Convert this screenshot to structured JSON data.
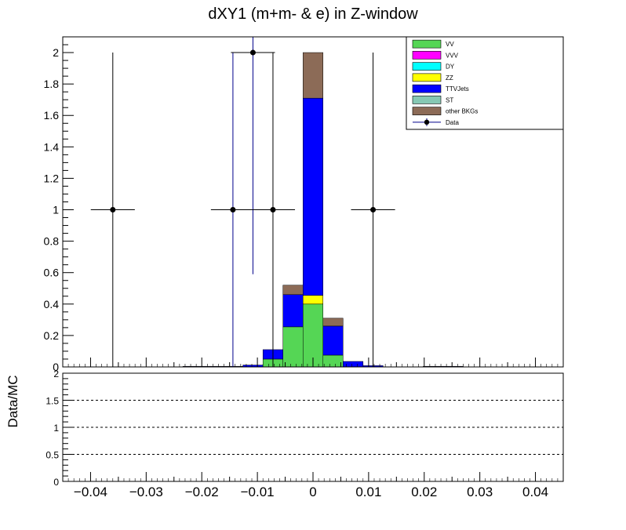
{
  "chart_data": [
    {
      "type": "bar",
      "stacked": true,
      "title": "dXY1 (m+m- & e) in Z-window",
      "xlabel": "",
      "ylabel": "",
      "xlim": [
        -0.045,
        0.045
      ],
      "ylim": [
        0,
        2.1
      ],
      "bin_width": 0.0036,
      "x_tick_labels": [
        "−0.04",
        "−0.03",
        "−0.02",
        "−0.01",
        "0",
        "0.01",
        "0.02",
        "0.03",
        "0.04"
      ],
      "x_ticks": [
        -0.04,
        -0.03,
        -0.02,
        -0.01,
        0,
        0.01,
        0.02,
        0.03,
        0.04
      ],
      "y_tick_labels": [
        "0",
        "0.2",
        "0.4",
        "0.6",
        "0.8",
        "1",
        "1.2",
        "1.4",
        "1.6",
        "1.8",
        "2"
      ],
      "y_ticks": [
        0,
        0.2,
        0.4,
        0.6,
        0.8,
        1,
        1.2,
        1.4,
        1.6,
        1.8,
        2
      ],
      "legend_position": "top-right",
      "series": [
        {
          "name": "VV",
          "color": "#55d655",
          "bins": [
            {
              "x": -0.0072,
              "y": 0.05
            },
            {
              "x": -0.0036,
              "y": 0.255
            },
            {
              "x": 0.0,
              "y": 0.4
            },
            {
              "x": 0.0036,
              "y": 0.075
            }
          ]
        },
        {
          "name": "VVV",
          "color": "#ff00ff",
          "bins": []
        },
        {
          "name": "DY",
          "color": "#00ffff",
          "bins": []
        },
        {
          "name": "ZZ",
          "color": "#ffff00",
          "bins": [
            {
              "x": 0.0,
              "y": 0.055
            }
          ]
        },
        {
          "name": "TTVJets",
          "color": "#0000ff",
          "bins": [
            {
              "x": -0.0216,
              "y": 0.004
            },
            {
              "x": -0.018,
              "y": 0.004
            },
            {
              "x": -0.0144,
              "y": 0.004
            },
            {
              "x": -0.0108,
              "y": 0.012
            },
            {
              "x": -0.0072,
              "y": 0.06
            },
            {
              "x": -0.0036,
              "y": 0.205
            },
            {
              "x": 0.0,
              "y": 1.255
            },
            {
              "x": 0.0036,
              "y": 0.185
            },
            {
              "x": 0.0072,
              "y": 0.035
            },
            {
              "x": 0.0108,
              "y": 0.008
            },
            {
              "x": 0.0216,
              "y": 0.004
            },
            {
              "x": 0.0252,
              "y": 0.004
            }
          ]
        },
        {
          "name": "ST",
          "color": "#86c8b4",
          "bins": []
        },
        {
          "name": "other BKGs",
          "color": "#8c6b57",
          "bins": [
            {
              "x": -0.0036,
              "y": 0.06
            },
            {
              "x": 0.0,
              "y": 0.29
            },
            {
              "x": 0.0036,
              "y": 0.05
            }
          ]
        }
      ],
      "data_series": {
        "name": "Data",
        "color": "#000000",
        "points": [
          {
            "x": -0.036,
            "y": 1,
            "err": 1,
            "err_color": "#000000"
          },
          {
            "x": -0.0144,
            "y": 1,
            "err": 1,
            "err_color": "#00008b"
          },
          {
            "x": -0.0108,
            "y": 2,
            "err": 1.41,
            "err_color": "#00008b"
          },
          {
            "x": -0.0072,
            "y": 1,
            "err": 1,
            "err_color": "#000000"
          },
          {
            "x": 0.0108,
            "y": 1,
            "err": 1,
            "err_color": "#000000"
          }
        ]
      }
    },
    {
      "type": "line",
      "title": "",
      "xlabel": "",
      "ylabel": "Data/MC",
      "xlim": [
        -0.045,
        0.045
      ],
      "ylim": [
        0,
        2
      ],
      "y_tick_labels": [
        "0",
        "0.5",
        "1",
        "1.5",
        "2"
      ],
      "y_ticks": [
        0,
        0.5,
        1,
        1.5,
        2
      ],
      "reference_lines": [
        0.5,
        1,
        1.5
      ],
      "x_tick_labels": [
        "−0.04",
        "−0.03",
        "−0.02",
        "−0.01",
        "0",
        "0.01",
        "0.02",
        "0.03",
        "0.04"
      ],
      "x_ticks": [
        -0.04,
        -0.03,
        -0.02,
        -0.01,
        0,
        0.01,
        0.02,
        0.03,
        0.04
      ]
    }
  ]
}
